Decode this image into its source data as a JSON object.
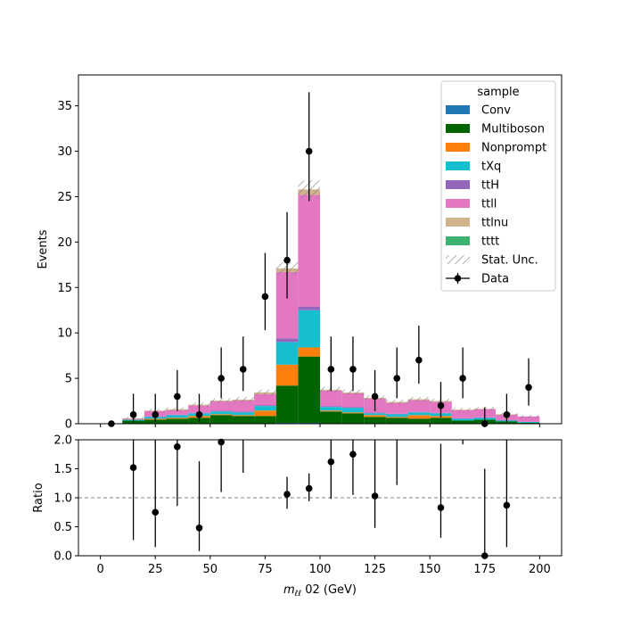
{
  "chart_data": [
    {
      "type": "bar",
      "stacked": true,
      "xlabel": "$m_{\\ell\\ell}$ 02 (GeV)",
      "ylabel": "Events",
      "xlim": [
        -10,
        210
      ],
      "ylim": [
        0,
        38.4
      ],
      "x_ticks": [
        "0",
        "25",
        "50",
        "75",
        "100",
        "125",
        "150",
        "175",
        "200"
      ],
      "y_ticks": [
        "0",
        "5",
        "10",
        "15",
        "20",
        "25",
        "30",
        "35"
      ],
      "legend": {
        "title": "sample",
        "placement": "top-right",
        "entries": [
          "Conv",
          "Multiboson",
          "Nonprompt",
          "tXq",
          "ttH",
          "ttll",
          "ttlnu",
          "tttt",
          "Stat. Unc.",
          "Data"
        ]
      },
      "bin_edges": [
        0,
        10,
        20,
        30,
        40,
        50,
        60,
        70,
        80,
        90,
        100,
        110,
        120,
        130,
        140,
        150,
        160,
        170,
        180,
        190,
        200
      ],
      "series": [
        {
          "name": "Conv",
          "color": "#1f77b4",
          "values": [
            0,
            0.05,
            0.05,
            0.05,
            0.05,
            0.05,
            0.05,
            0.05,
            0.1,
            0.1,
            0.05,
            0.05,
            0.05,
            0.05,
            0.05,
            0.05,
            0.05,
            0.05,
            0.05,
            0
          ]
        },
        {
          "name": "Multiboson",
          "color": "#006400",
          "values": [
            0,
            0.3,
            0.4,
            0.5,
            0.6,
            0.9,
            0.8,
            0.8,
            4.1,
            7.3,
            1.3,
            1.1,
            0.7,
            0.6,
            0.5,
            0.6,
            0.3,
            0.4,
            0.2,
            0.1
          ]
        },
        {
          "name": "Nonprompt",
          "color": "#ff7f0e",
          "values": [
            0,
            0,
            0.1,
            0.1,
            0.2,
            0.1,
            0.1,
            0.6,
            2.3,
            1.0,
            0.1,
            0.1,
            0.2,
            0.1,
            0.4,
            0.2,
            0,
            0,
            0,
            0
          ]
        },
        {
          "name": "tXq",
          "color": "#17becf",
          "values": [
            0,
            0.1,
            0.2,
            0.3,
            0.3,
            0.3,
            0.3,
            0.5,
            2.5,
            4.1,
            0.4,
            0.5,
            0.2,
            0.3,
            0.3,
            0.3,
            0.2,
            0.2,
            0.1,
            0.1
          ]
        },
        {
          "name": "ttH",
          "color": "#9467bd",
          "values": [
            0,
            0,
            0.05,
            0.05,
            0.05,
            0.1,
            0.1,
            0.1,
            0.4,
            0.4,
            0.1,
            0.1,
            0.1,
            0.05,
            0.05,
            0.05,
            0.05,
            0.05,
            0.05,
            0
          ]
        },
        {
          "name": "ttll",
          "color": "#e377c2",
          "values": [
            0,
            0.1,
            0.6,
            0.5,
            0.8,
            1.0,
            1.2,
            1.2,
            7.3,
            12.3,
            1.7,
            1.5,
            1.5,
            1.2,
            1.3,
            1.2,
            0.9,
            0.9,
            0.6,
            0.6
          ]
        },
        {
          "name": "ttlnu",
          "color": "#d2b48c",
          "values": [
            0,
            0.05,
            0.05,
            0.1,
            0.1,
            0.1,
            0.1,
            0.2,
            0.4,
            0.6,
            0.1,
            0.1,
            0.1,
            0.1,
            0.1,
            0.1,
            0.05,
            0.05,
            0.05,
            0
          ]
        },
        {
          "name": "tttt",
          "color": "#3cb371",
          "values": [
            0,
            0,
            0,
            0,
            0,
            0,
            0,
            0,
            0,
            0,
            0,
            0,
            0,
            0,
            0,
            0,
            0,
            0,
            0,
            0
          ]
        }
      ],
      "stat_unc": {
        "name": "Stat. Unc.",
        "values": [
          0,
          0.15,
          0.2,
          0.2,
          0.25,
          0.25,
          0.3,
          0.3,
          0.7,
          1.0,
          0.3,
          0.3,
          0.25,
          0.25,
          0.25,
          0.25,
          0.2,
          0.2,
          0.15,
          0.15
        ]
      },
      "data": {
        "name": "Data",
        "x": [
          5,
          15,
          25,
          35,
          45,
          55,
          65,
          75,
          85,
          95,
          105,
          115,
          125,
          135,
          145,
          155,
          165,
          175,
          185,
          195
        ],
        "y": [
          0,
          1,
          1,
          3,
          1,
          5,
          6,
          14,
          18,
          30,
          6,
          6,
          3,
          5,
          7,
          2,
          5,
          0,
          1,
          4
        ],
        "err_low": [
          0,
          0.8,
          0.8,
          1.6,
          0.8,
          2.2,
          2.4,
          3.7,
          4.2,
          5.5,
          2.4,
          2.4,
          1.6,
          2.2,
          2.6,
          1.3,
          2.2,
          0,
          0.8,
          2.0
        ],
        "err_high": [
          0,
          2.3,
          2.3,
          2.9,
          2.3,
          3.4,
          3.6,
          4.8,
          5.3,
          6.5,
          3.6,
          3.6,
          2.9,
          3.4,
          3.8,
          2.6,
          3.4,
          1.8,
          2.3,
          3.2
        ]
      }
    },
    {
      "type": "scatter",
      "xlabel": "$m_{\\ell\\ell}$ 02 (GeV)",
      "ylabel": "Ratio",
      "xlim": [
        -10,
        210
      ],
      "ylim": [
        0,
        2
      ],
      "x_ticks": [
        "0",
        "25",
        "50",
        "75",
        "100",
        "125",
        "150",
        "175",
        "200"
      ],
      "y_ticks": [
        "0.0",
        "0.5",
        "1.0",
        "1.5",
        "2.0"
      ],
      "reference_line": 1.0,
      "points": {
        "x": [
          15,
          25,
          35,
          45,
          55,
          85,
          95,
          105,
          115,
          125,
          155,
          175,
          185
        ],
        "y": [
          1.52,
          0.75,
          1.88,
          0.48,
          1.96,
          1.06,
          1.16,
          1.62,
          1.75,
          1.03,
          0.83,
          0,
          0.87
        ],
        "err_low": [
          1.25,
          0.6,
          1.02,
          0.4,
          0.86,
          0.25,
          0.22,
          0.64,
          0.7,
          0.55,
          0.52,
          0,
          0.72
        ],
        "err_high": [
          2.3,
          2.3,
          0.97,
          1.15,
          1.4,
          0.3,
          0.26,
          0.96,
          1.05,
          1.0,
          1.1,
          1.5,
          1.9
        ]
      },
      "offscale_errors": {
        "x": [
          65,
          135,
          165
        ],
        "upper": [
          2.0,
          2.0,
          2.0
        ],
        "lower": [
          1.43,
          1.22,
          1.92
        ]
      }
    }
  ],
  "colors": {
    "data": "#000000",
    "hatch": "#808080",
    "reference_line": "#808080"
  }
}
